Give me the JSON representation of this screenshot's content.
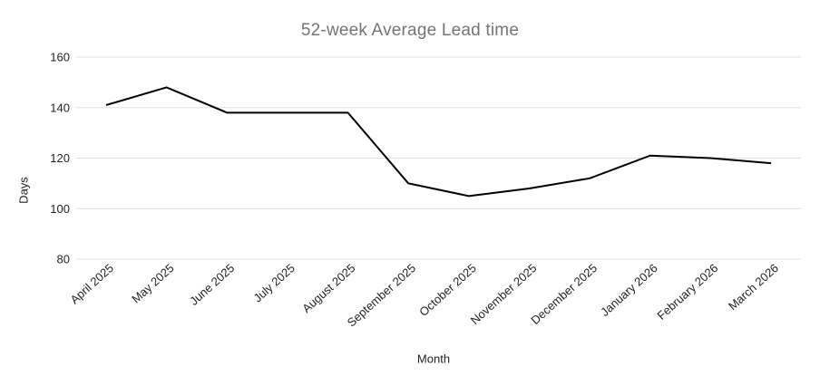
{
  "chart_data": {
    "type": "line",
    "title": "52-week Average Lead time",
    "xlabel": "Month",
    "ylabel": "Days",
    "categories": [
      "April 2025",
      "May 2025",
      "June 2025",
      "July 2025",
      "August 2025",
      "September 2025",
      "October 2025",
      "November 2025",
      "December 2025",
      "January 2026",
      "February 2026",
      "March 2026"
    ],
    "values": [
      141,
      148,
      138,
      138,
      138,
      110,
      105,
      108,
      112,
      121,
      120,
      118
    ],
    "ylim": [
      80,
      160
    ],
    "yticks": [
      80,
      100,
      120,
      140,
      160
    ],
    "grid": true,
    "legend": "none",
    "colors": {
      "line": "#000000",
      "grid": "#e0e0e0",
      "title": "#757575",
      "tick_label": "#222222",
      "background": "#ffffff"
    }
  }
}
